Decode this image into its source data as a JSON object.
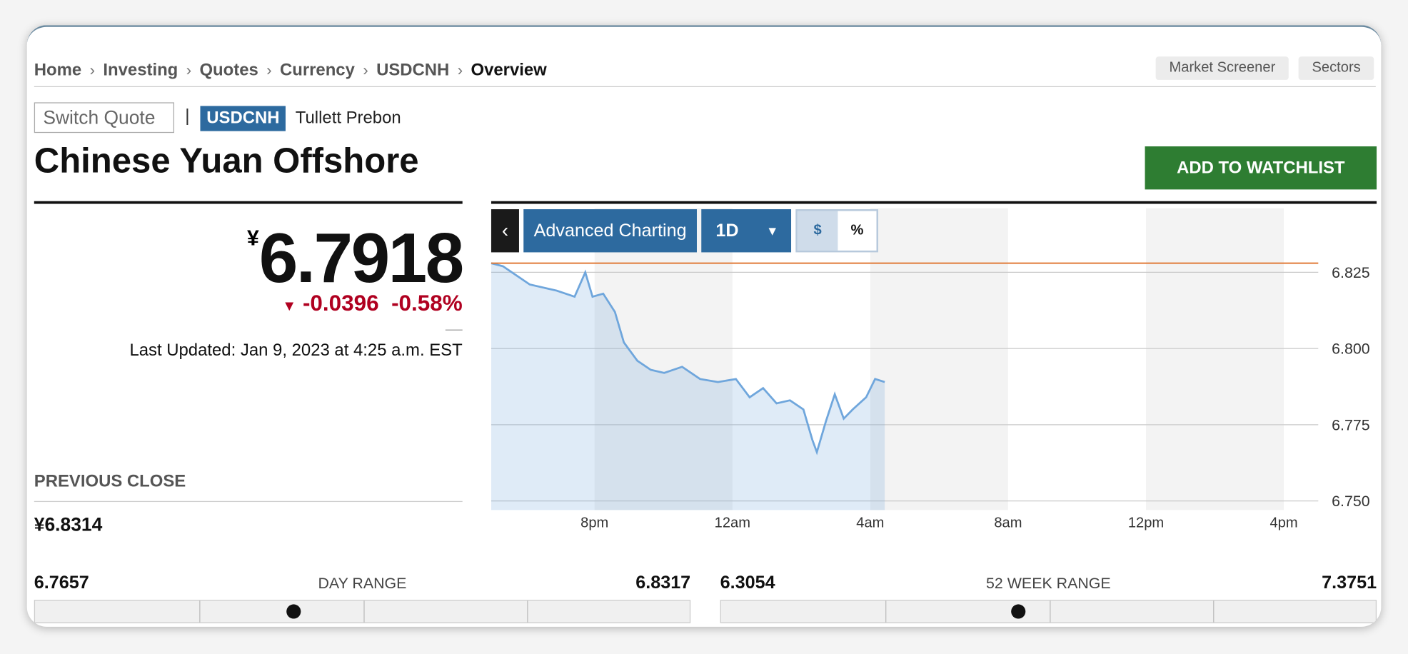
{
  "breadcrumb": [
    "Home",
    "Investing",
    "Quotes",
    "Currency",
    "USDCNH",
    "Overview"
  ],
  "top_buttons": [
    "Market Screener",
    "Sectors"
  ],
  "switch_quote": "Switch Quote",
  "ticker": "USDCNH",
  "source": "Tullett Prebon",
  "title": "Chinese Yuan Offshore",
  "watchlist_button": "ADD TO WATCHLIST",
  "quote": {
    "currency": "¥",
    "price": "6.7918",
    "change": "-0.0396",
    "change_percent": "-0.58%",
    "last_updated": "Last Updated: Jan 9, 2023 at 4:25 a.m. EST"
  },
  "previous_close": {
    "label": "PREVIOUS CLOSE",
    "value": "¥6.8314"
  },
  "day_range": {
    "label": "DAY RANGE",
    "low": "6.7657",
    "high": "6.8317"
  },
  "week52_range": {
    "label": "52 WEEK RANGE",
    "low": "6.3054",
    "high": "7.3751"
  },
  "chart_toolbar": {
    "advanced": "Advanced Charting",
    "period": "1D",
    "dollar": "$",
    "percent": "%"
  },
  "chart": {
    "type": "line",
    "x": [
      17.0,
      17.34,
      18.12,
      18.9,
      19.42,
      19.73,
      19.94,
      20.25,
      20.59,
      20.85,
      21.24,
      21.63,
      22.02,
      22.54,
      23.06,
      23.58,
      24.1,
      24.5,
      24.89,
      25.28,
      25.67,
      26.06,
      26.32,
      26.45,
      26.71,
      26.97,
      27.23,
      27.49,
      27.88,
      28.14,
      28.42
    ],
    "series": [
      {
        "color": "#6fa6dc",
        "values": [
          6.828,
          6.827,
          6.821,
          6.819,
          6.817,
          6.825,
          6.817,
          6.818,
          6.812,
          6.802,
          6.796,
          6.793,
          6.792,
          6.794,
          6.79,
          6.789,
          6.79,
          6.784,
          6.787,
          6.782,
          6.783,
          6.78,
          6.77,
          6.766,
          6.776,
          6.785,
          6.777,
          6.78,
          6.784,
          6.79,
          6.789
        ]
      }
    ],
    "reference_line": {
      "value": 6.828,
      "color": "#e07b39"
    },
    "xlim": [
      17,
      41
    ],
    "xticks": [
      {
        "value": 20,
        "label": "8pm"
      },
      {
        "value": 24,
        "label": "12am"
      },
      {
        "value": 28,
        "label": "4am"
      },
      {
        "value": 32,
        "label": "8am"
      },
      {
        "value": 36,
        "label": "12pm"
      },
      {
        "value": 40,
        "label": "4pm"
      }
    ],
    "ylim": [
      6.747,
      6.846
    ],
    "yticks": [
      {
        "value": 6.75,
        "label": "6.750"
      },
      {
        "value": 6.775,
        "label": "6.775"
      },
      {
        "value": 6.8,
        "label": "6.800"
      },
      {
        "value": 6.825,
        "label": "6.825"
      }
    ],
    "grid": true
  }
}
